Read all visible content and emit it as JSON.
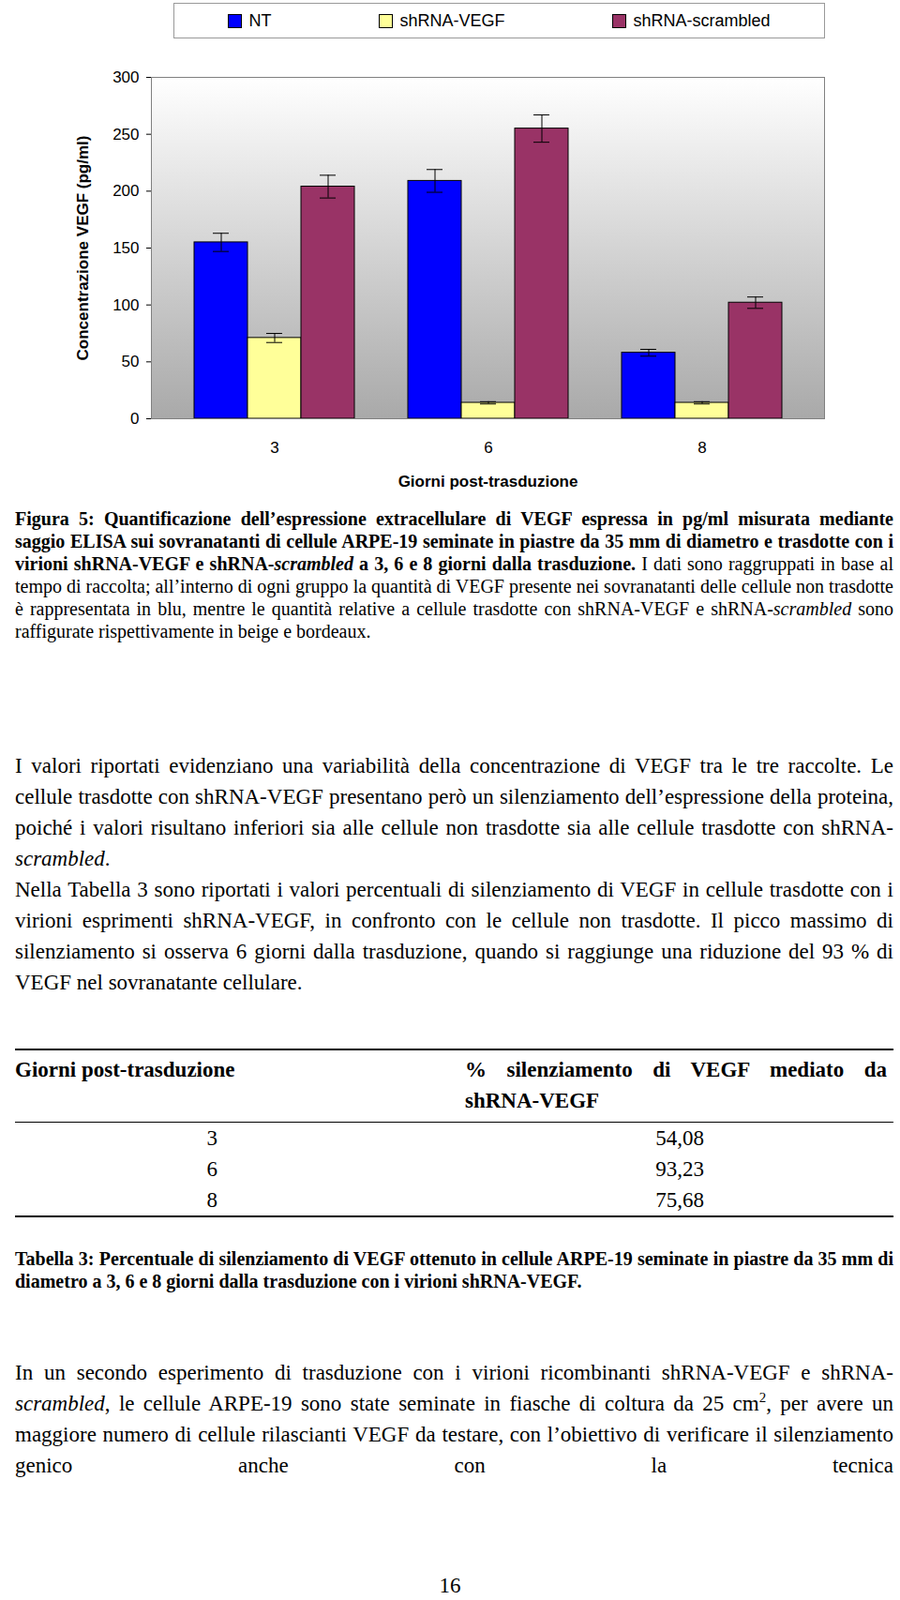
{
  "chart_data": {
    "type": "bar",
    "categories": [
      "3",
      "6",
      "8"
    ],
    "x_label": "Giorni post-trasduzione",
    "y_label": "Concentrazione VEGF (pg/ml)",
    "series": [
      {
        "name": "NT",
        "color": "#0000ff",
        "values": [
          155,
          209,
          58
        ],
        "errors": [
          8,
          10,
          3
        ]
      },
      {
        "name": "shRNA-VEGF",
        "color": "#ffff99",
        "values": [
          71,
          14,
          14
        ],
        "errors": [
          4,
          1,
          1
        ]
      },
      {
        "name": "shRNA-scrambled",
        "color": "#993366",
        "values": [
          204,
          255,
          102
        ],
        "errors": [
          10,
          12,
          5
        ]
      }
    ],
    "ylim": [
      0,
      300
    ],
    "yticks": [
      0,
      50,
      100,
      150,
      200,
      250,
      300
    ],
    "grid": false,
    "legend": "top"
  },
  "caption": [
    {
      "t": "Figura 5: Quantificazione dell’espressione extracellulare di VEGF espressa in pg/ml misurata mediante saggio ELISA sui sovranatanti di cellule ARPE-19 seminate in piastre da 35 mm di diametro e trasdotte con i virioni shRNA-VEGF e shRNA-",
      "b": true
    },
    {
      "t": "scrambled",
      "b": true,
      "i": true
    },
    {
      "t": " a 3, 6 e 8 giorni dalla trasduzione.",
      "b": true
    },
    {
      "t": " I dati sono raggruppati in base al tempo di raccolta; all’interno di ogni gruppo la quantità di VEGF presente nei sovranatanti delle cellule non trasdotte è rappresentata in blu, mentre le quantità relative a cellule trasdotte con shRNA-VEGF e shRNA-"
    },
    {
      "t": "scrambled",
      "i": true
    },
    {
      "t": " sono raffigurate rispettivamente in beige e bordeaux."
    }
  ],
  "paragraphs": [
    [
      {
        "t": "I valori riportati evidenziano una variabilità della concentrazione di VEGF tra le tre raccolte. Le cellule trasdotte con shRNA-VEGF presentano però un silenziamento dell’espressione della proteina, poiché i valori risultano inferiori sia alle cellule non trasdotte sia alle cellule trasdotte con shRNA-"
      },
      {
        "t": "scrambled",
        "i": true
      },
      {
        "t": "."
      }
    ],
    [
      {
        "t": "Nella Tabella 3 sono riportati i valori percentuali di silenziamento di VEGF in cellule trasdotte con i virioni esprimenti shRNA-VEGF, in confronto con le cellule non trasdotte. Il picco massimo di silenziamento si osserva 6 giorni dalla trasduzione, quando si raggiunge una riduzione del 93 % di VEGF nel sovranatante cellulare."
      }
    ]
  ],
  "table": {
    "header": [
      "Giorni post-trasduzione",
      "% silenziamento di VEGF mediato da shRNA-VEGF"
    ],
    "rows": [
      [
        "3",
        "54,08"
      ],
      [
        "6",
        "93,23"
      ],
      [
        "8",
        "75,68"
      ]
    ]
  },
  "table_caption": [
    {
      "t": "Tabella 3: Percentuale di silenziamento di VEGF ottenuto in cellule ARPE-19 seminate in piastre da 35 mm di diametro a 3, 6 e 8 giorni dalla trasduzione con i virioni shRNA-VEGF.",
      "b": true
    }
  ],
  "last_paragraph": [
    {
      "t": "In un secondo esperimento di trasduzione con i virioni ricombinanti shRNA-VEGF e shRNA-"
    },
    {
      "t": "scrambled",
      "i": true
    },
    {
      "t": ", le cellule ARPE-19 sono state seminate in fiasche di coltura da 25 cm"
    },
    {
      "t": "2",
      "sup": true
    },
    {
      "t": ", per avere un maggiore numero di cellule rilascianti VEGF da testare, con l’obiettivo di verificare il silenziamento genico anche con la tecnica"
    }
  ],
  "page_number": "16"
}
